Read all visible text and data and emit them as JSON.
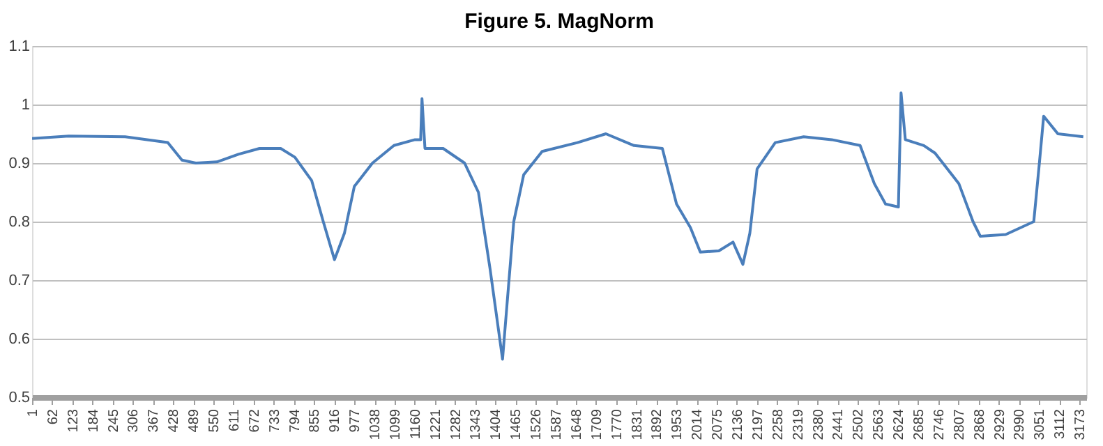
{
  "chart_data": {
    "type": "line",
    "title": "Figure 5. MagNorm",
    "x": [
      1,
      112,
      283,
      412,
      455,
      497,
      561,
      626,
      690,
      754,
      797,
      848,
      883,
      917,
      947,
      977,
      1032,
      1097,
      1161,
      1178,
      1182,
      1191,
      1246,
      1311,
      1353,
      1388,
      1426,
      1460,
      1490,
      1546,
      1653,
      1739,
      1824,
      1910,
      1953,
      1995,
      2025,
      2081,
      2124,
      2154,
      2175,
      2197,
      2252,
      2338,
      2423,
      2509,
      2552,
      2586,
      2625,
      2633,
      2646,
      2702,
      2736,
      2808,
      2851,
      2873,
      2950,
      3035,
      3052,
      3065,
      3108,
      3185
    ],
    "series": [
      {
        "color": "#4a7ebb",
        "values": [
          0.942,
          0.946,
          0.945,
          0.935,
          0.905,
          0.9,
          0.902,
          0.915,
          0.925,
          0.925,
          0.91,
          0.87,
          0.8,
          0.735,
          0.78,
          0.86,
          0.9,
          0.93,
          0.94,
          0.94,
          1.01,
          0.925,
          0.925,
          0.9,
          0.85,
          0.72,
          0.565,
          0.8,
          0.88,
          0.92,
          0.935,
          0.95,
          0.93,
          0.925,
          0.83,
          0.79,
          0.748,
          0.75,
          0.765,
          0.727,
          0.78,
          0.89,
          0.935,
          0.945,
          0.94,
          0.93,
          0.865,
          0.83,
          0.825,
          1.02,
          0.94,
          0.93,
          0.917,
          0.865,
          0.8,
          0.775,
          0.778,
          0.8,
          0.9,
          0.98,
          0.95,
          0.945
        ]
      }
    ],
    "xlim": [
      1,
      3194
    ],
    "xticks": [
      1,
      62,
      123,
      184,
      245,
      306,
      367,
      428,
      489,
      550,
      611,
      672,
      733,
      794,
      855,
      916,
      977,
      1038,
      1099,
      1160,
      1221,
      1282,
      1343,
      1404,
      1465,
      1526,
      1587,
      1648,
      1709,
      1770,
      1831,
      1892,
      1953,
      2014,
      2075,
      2136,
      2197,
      2258,
      2319,
      2380,
      2441,
      2502,
      2563,
      2624,
      2685,
      2746,
      2807,
      2868,
      2929,
      2990,
      3051,
      3112,
      3173
    ],
    "ylim": [
      0.5,
      1.1
    ],
    "yticks": [
      0.5,
      0.6,
      0.7,
      0.8,
      0.9,
      1,
      1.1
    ],
    "grid": "y",
    "marker": "none",
    "line_style": "solid"
  }
}
